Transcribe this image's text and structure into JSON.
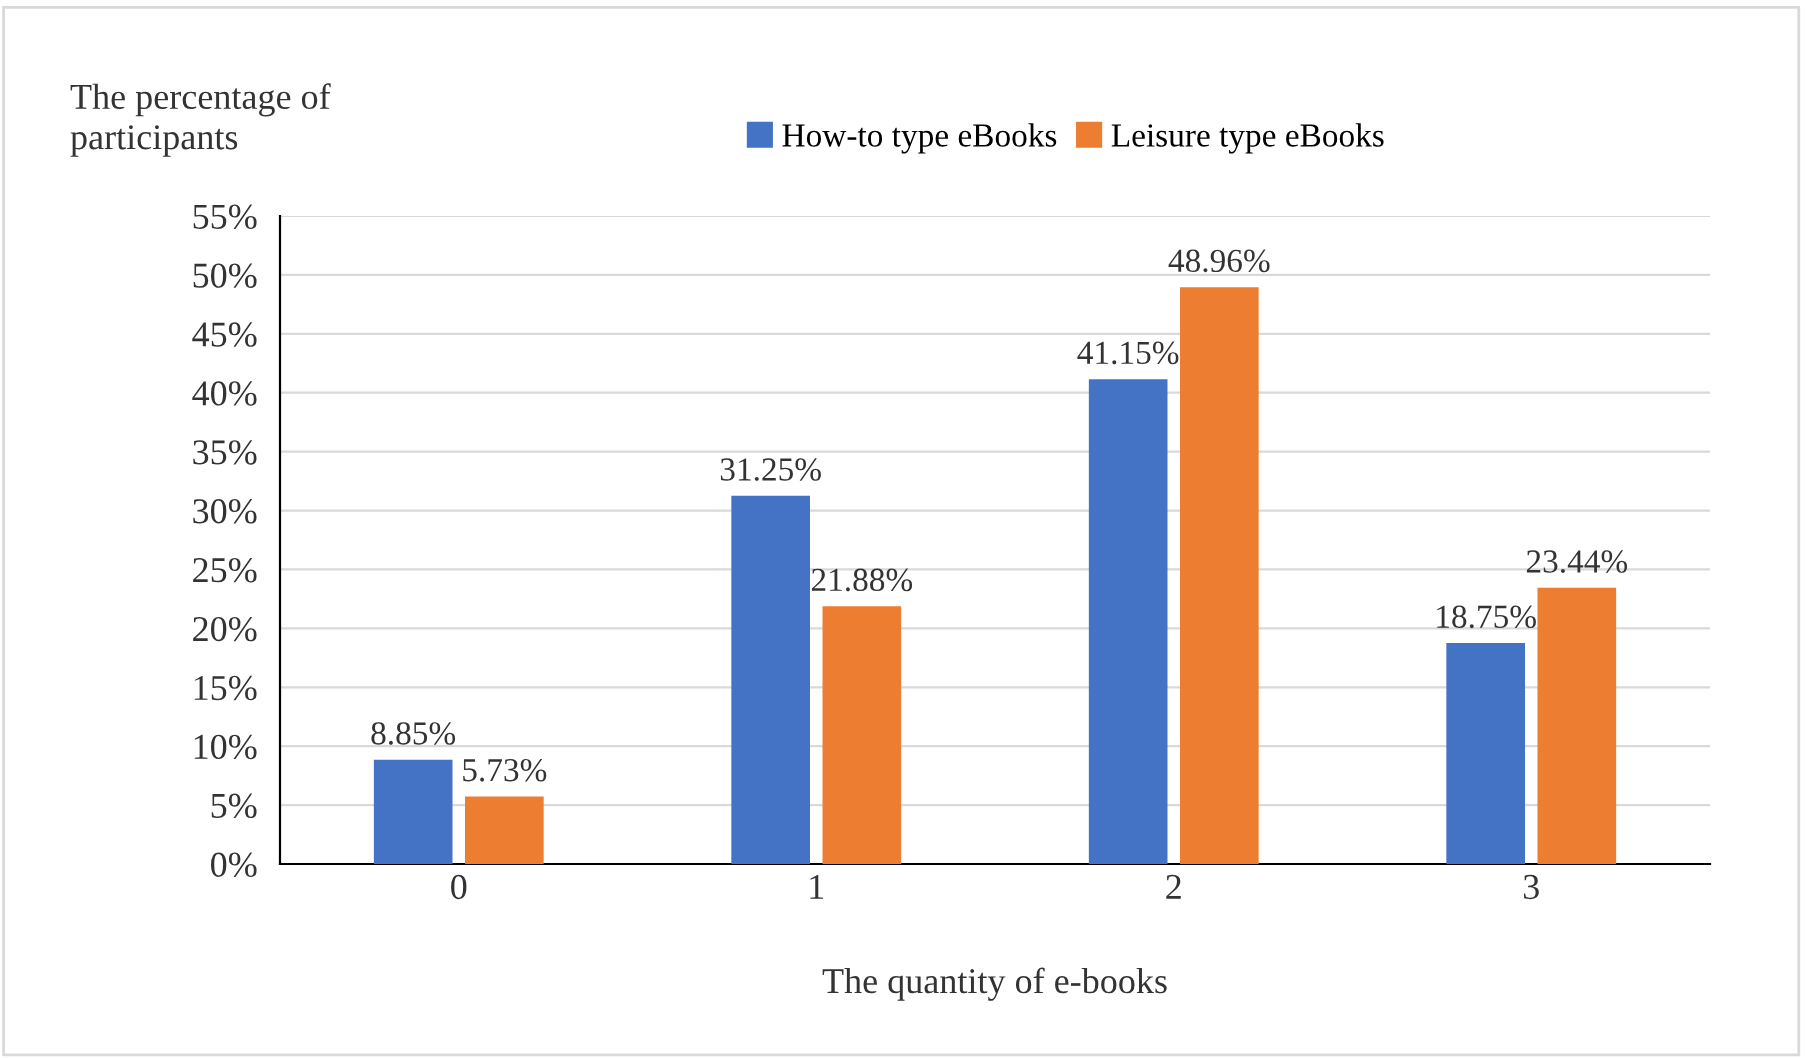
{
  "chart_data": {
    "type": "bar",
    "ylabel": "The percentage of\nparticipants",
    "xlabel": "The quantity of e-books",
    "categories": [
      "0",
      "1",
      "2",
      "3"
    ],
    "series": [
      {
        "name": "How-to type eBooks",
        "color": "#4472c4",
        "values": [
          8.85,
          31.25,
          41.15,
          18.75
        ],
        "value_labels": [
          "8.85%",
          "31.25%",
          "41.15%",
          "18.75%"
        ]
      },
      {
        "name": "Leisure type eBooks",
        "color": "#ed7d31",
        "values": [
          5.73,
          21.88,
          48.96,
          23.44
        ],
        "value_labels": [
          "5.73%",
          "21.88%",
          "48.96%",
          "23.44%"
        ]
      }
    ],
    "ylim": [
      0,
      55
    ],
    "yticks": [
      {
        "value": 0,
        "label": "0%"
      },
      {
        "value": 5,
        "label": "5%"
      },
      {
        "value": 10,
        "label": "10%"
      },
      {
        "value": 15,
        "label": "15%"
      },
      {
        "value": 20,
        "label": "20%"
      },
      {
        "value": 25,
        "label": "25%"
      },
      {
        "value": 30,
        "label": "30%"
      },
      {
        "value": 35,
        "label": "35%"
      },
      {
        "value": 40,
        "label": "40%"
      },
      {
        "value": 45,
        "label": "45%"
      },
      {
        "value": 50,
        "label": "50%"
      },
      {
        "value": 55,
        "label": "55%"
      }
    ],
    "grid": "y",
    "legend": "top"
  }
}
